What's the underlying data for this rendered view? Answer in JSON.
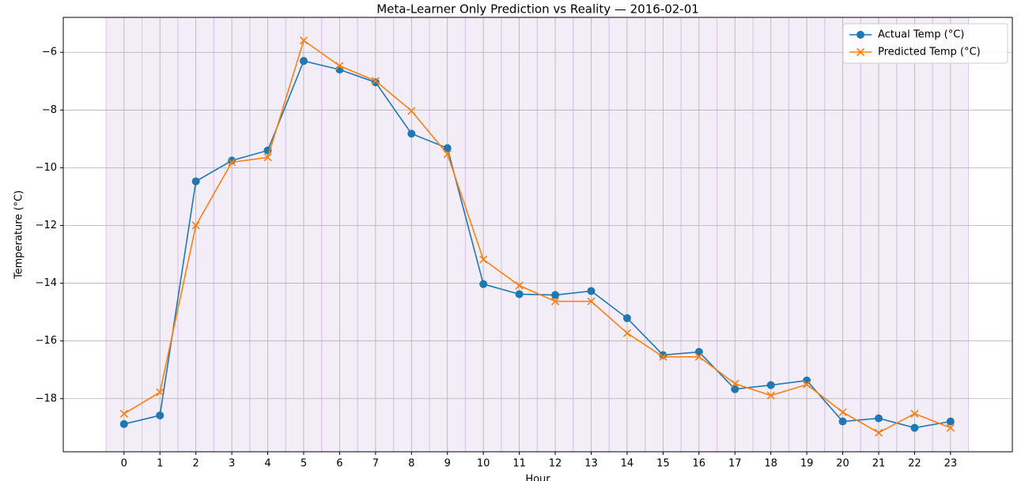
{
  "chart_data": {
    "type": "line",
    "title": "Meta-Learner Only Prediction vs Reality — 2016-02-01",
    "x_label": "Hour",
    "y_label": "Temperature (°C)",
    "x": [
      0,
      1,
      2,
      3,
      4,
      5,
      6,
      7,
      8,
      9,
      10,
      11,
      12,
      13,
      14,
      15,
      16,
      17,
      18,
      19,
      20,
      21,
      22,
      23
    ],
    "series": [
      {
        "name": "Actual Temp (°C)",
        "color": "#1f77b4",
        "marker": "circle",
        "values": [
          -18.88,
          -18.58,
          -10.47,
          -9.75,
          -9.4,
          -6.3,
          -6.6,
          -7.04,
          -8.82,
          -9.32,
          -14.03,
          -14.38,
          -14.41,
          -14.27,
          -15.21,
          -16.49,
          -16.38,
          -17.67,
          -17.53,
          -17.37,
          -18.79,
          -18.68,
          -19.01,
          -18.79
        ]
      },
      {
        "name": "Predicted Temp (°C)",
        "color": "#ff7f0e",
        "marker": "x",
        "values": [
          -18.52,
          -17.78,
          -12.0,
          -9.81,
          -9.64,
          -5.59,
          -6.47,
          -6.99,
          -8.03,
          -9.53,
          -13.18,
          -14.08,
          -14.63,
          -14.63,
          -15.73,
          -16.55,
          -16.55,
          -17.48,
          -17.89,
          -17.51,
          -18.47,
          -19.18,
          -18.52,
          -19.01
        ]
      }
    ],
    "xlim": [
      -1.69,
      24.72
    ],
    "ylim": [
      -19.84,
      -4.79
    ],
    "xticks": [
      0,
      1,
      2,
      3,
      4,
      5,
      6,
      7,
      8,
      9,
      10,
      11,
      12,
      13,
      14,
      15,
      16,
      17,
      18,
      19,
      20,
      21,
      22,
      23
    ],
    "yticks": [
      {
        "value": -18,
        "label": "−18"
      },
      {
        "value": -16,
        "label": "−16"
      },
      {
        "value": -14,
        "label": "−14"
      },
      {
        "value": -12,
        "label": "−12"
      },
      {
        "value": -10,
        "label": "−10"
      },
      {
        "value": -8,
        "label": "−8"
      },
      {
        "value": -6,
        "label": "−6"
      }
    ],
    "grid": true,
    "legend": "upper right"
  }
}
